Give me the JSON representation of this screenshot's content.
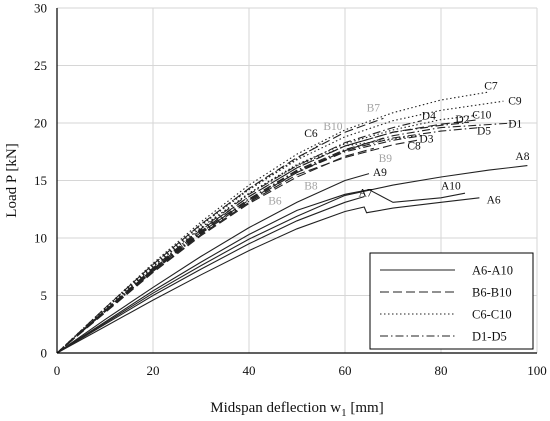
{
  "chart_data": {
    "type": "line",
    "title": "",
    "xlabel_main": "Midspan deflection w",
    "xlabel_sub": "1",
    "xlabel_unit": " [mm]",
    "ylabel": "Load P [kN]",
    "xlim": [
      0,
      100
    ],
    "ylim": [
      0,
      30
    ],
    "xticks": [
      0,
      20,
      40,
      60,
      80,
      100
    ],
    "yticks": [
      0,
      5,
      10,
      15,
      20,
      25,
      30
    ],
    "grid": true,
    "legend_position": "bottom-right",
    "legend": [
      {
        "label": "A6-A10",
        "dash": "solid"
      },
      {
        "label": "B6-B10",
        "dash": "long-dash"
      },
      {
        "label": "C6-C10",
        "dash": "dotted"
      },
      {
        "label": "D1-D5",
        "dash": "dash-dot"
      }
    ],
    "series": [
      {
        "name": "A6",
        "group": "A",
        "x": [
          0,
          10,
          20,
          30,
          40,
          50,
          60,
          64,
          64.5,
          70,
          80,
          88
        ],
        "y": [
          0,
          2.3,
          4.6,
          6.8,
          8.9,
          10.8,
          12.3,
          12.7,
          12.2,
          12.6,
          13.1,
          13.5
        ]
      },
      {
        "name": "A7",
        "group": "A",
        "x": [
          0,
          10,
          20,
          30,
          40,
          50,
          60,
          64
        ],
        "y": [
          0,
          2.5,
          5.0,
          7.3,
          9.5,
          11.5,
          13.1,
          13.6
        ]
      },
      {
        "name": "A8",
        "group": "A",
        "x": [
          0,
          10,
          20,
          30,
          40,
          50,
          60,
          70,
          80,
          90,
          98
        ],
        "y": [
          0,
          2.6,
          5.2,
          7.6,
          9.9,
          11.9,
          13.7,
          14.6,
          15.3,
          15.9,
          16.3
        ]
      },
      {
        "name": "A9",
        "group": "A",
        "x": [
          0,
          10,
          20,
          30,
          40,
          50,
          60,
          65
        ],
        "y": [
          0,
          2.9,
          5.7,
          8.4,
          10.9,
          13.1,
          15.0,
          15.6
        ]
      },
      {
        "name": "A10",
        "group": "A",
        "x": [
          0,
          10,
          20,
          30,
          40,
          50,
          60,
          65,
          70,
          80,
          85
        ],
        "y": [
          0,
          2.7,
          5.4,
          7.9,
          10.3,
          12.4,
          13.8,
          14.2,
          13.1,
          13.5,
          13.9
        ]
      },
      {
        "name": "B6",
        "group": "B",
        "x": [
          0,
          10,
          20,
          30,
          40,
          50,
          60,
          70,
          75
        ],
        "y": [
          0,
          3.6,
          7.1,
          10.3,
          13.1,
          15.5,
          17.0,
          18.1,
          18.5
        ]
      },
      {
        "name": "B7",
        "group": "B",
        "x": [
          0,
          10,
          20,
          30,
          40,
          50,
          60,
          68
        ],
        "y": [
          0,
          3.9,
          7.7,
          11.2,
          14.3,
          17.0,
          19.2,
          20.4
        ]
      },
      {
        "name": "B8",
        "group": "B",
        "x": [
          0,
          10,
          20,
          30,
          40,
          50,
          60,
          66
        ],
        "y": [
          0,
          3.5,
          7.0,
          10.2,
          13.0,
          15.3,
          17.1,
          17.8
        ]
      },
      {
        "name": "B9",
        "group": "B",
        "x": [
          0,
          10,
          20,
          30,
          40,
          50,
          60,
          68
        ],
        "y": [
          0,
          3.6,
          7.2,
          10.5,
          13.3,
          15.7,
          17.6,
          18.7
        ]
      },
      {
        "name": "B10",
        "group": "B",
        "x": [
          0,
          10,
          20,
          30,
          40,
          50,
          60,
          70,
          80,
          88
        ],
        "y": [
          0,
          3.7,
          7.3,
          10.7,
          13.6,
          16.1,
          18.0,
          19.2,
          19.9,
          20.3
        ]
      },
      {
        "name": "C6",
        "group": "C",
        "x": [
          0,
          10,
          20,
          30,
          40,
          50,
          55
        ],
        "y": [
          0,
          3.9,
          7.7,
          11.2,
          14.3,
          16.9,
          18.2
        ]
      },
      {
        "name": "C7",
        "group": "C",
        "x": [
          0,
          10,
          20,
          30,
          40,
          50,
          60,
          70,
          80,
          90
        ],
        "y": [
          0,
          3.9,
          7.8,
          11.4,
          14.6,
          17.3,
          19.4,
          20.9,
          22.0,
          22.7
        ]
      },
      {
        "name": "C8",
        "group": "C",
        "x": [
          0,
          10,
          20,
          30,
          40,
          50,
          60,
          70,
          75
        ],
        "y": [
          0,
          3.8,
          7.5,
          10.9,
          13.9,
          16.3,
          18.0,
          18.6,
          18.9
        ]
      },
      {
        "name": "C9",
        "group": "C",
        "x": [
          0,
          10,
          20,
          30,
          40,
          50,
          60,
          70,
          80,
          93
        ],
        "y": [
          0,
          3.8,
          7.6,
          11.1,
          14.2,
          16.8,
          18.8,
          20.2,
          21.1,
          21.9
        ]
      },
      {
        "name": "C10",
        "group": "C",
        "x": [
          0,
          10,
          20,
          30,
          40,
          50,
          60,
          70,
          80,
          88
        ],
        "y": [
          0,
          3.8,
          7.5,
          10.9,
          13.9,
          16.4,
          18.2,
          19.4,
          20.3,
          20.7
        ]
      },
      {
        "name": "D1",
        "group": "D",
        "x": [
          0,
          10,
          20,
          30,
          40,
          50,
          60,
          70,
          80,
          95
        ],
        "y": [
          0,
          3.6,
          7.2,
          10.5,
          13.4,
          15.9,
          17.7,
          18.9,
          19.6,
          20.0
        ]
      },
      {
        "name": "D2",
        "group": "D",
        "x": [
          0,
          10,
          20,
          30,
          40,
          50,
          60,
          70,
          80,
          85
        ],
        "y": [
          0,
          3.7,
          7.3,
          10.6,
          13.6,
          16.1,
          18.0,
          19.2,
          19.8,
          20.0
        ]
      },
      {
        "name": "D3",
        "group": "D",
        "x": [
          0,
          10,
          20,
          30,
          40,
          50,
          60,
          70,
          76
        ],
        "y": [
          0,
          3.6,
          7.1,
          10.4,
          13.2,
          15.7,
          17.5,
          18.5,
          18.9
        ]
      },
      {
        "name": "D4",
        "group": "D",
        "x": [
          0,
          10,
          20,
          30,
          40,
          50,
          60,
          70,
          76
        ],
        "y": [
          0,
          3.7,
          7.4,
          10.8,
          13.8,
          16.3,
          18.3,
          19.6,
          20.2
        ]
      },
      {
        "name": "D5",
        "group": "D",
        "x": [
          0,
          10,
          20,
          30,
          40,
          50,
          60,
          70,
          80,
          88
        ],
        "y": [
          0,
          3.6,
          7.2,
          10.5,
          13.4,
          15.8,
          17.6,
          18.7,
          19.3,
          19.6
        ]
      }
    ],
    "annotations": [
      {
        "text": "A6",
        "x": 89.5,
        "y": 13.0,
        "color": "#111111"
      },
      {
        "text": "A7",
        "x": 62.8,
        "y": 13.6,
        "color": "#111111"
      },
      {
        "text": "A8",
        "x": 95.5,
        "y": 16.8,
        "color": "#111111"
      },
      {
        "text": "A9",
        "x": 65.8,
        "y": 15.4,
        "color": "#111111"
      },
      {
        "text": "A10",
        "x": 80.0,
        "y": 14.2,
        "color": "#111111"
      },
      {
        "text": "B6",
        "x": 44.0,
        "y": 12.9,
        "color": "#a3a3a3"
      },
      {
        "text": "B7",
        "x": 64.5,
        "y": 21.0,
        "color": "#a3a3a3"
      },
      {
        "text": "B8",
        "x": 51.5,
        "y": 14.2,
        "color": "#a3a3a3"
      },
      {
        "text": "B9",
        "x": 67.0,
        "y": 16.6,
        "color": "#a3a3a3"
      },
      {
        "text": "B10",
        "x": 55.5,
        "y": 19.4,
        "color": "#a3a3a3"
      },
      {
        "text": "C6",
        "x": 51.5,
        "y": 18.8,
        "color": "#111111"
      },
      {
        "text": "C7",
        "x": 89.0,
        "y": 22.9,
        "color": "#111111"
      },
      {
        "text": "C8",
        "x": 73.0,
        "y": 17.7,
        "color": "#111111"
      },
      {
        "text": "C9",
        "x": 94.0,
        "y": 21.6,
        "color": "#111111"
      },
      {
        "text": "C10",
        "x": 86.5,
        "y": 20.4,
        "color": "#111111"
      },
      {
        "text": "D1",
        "x": 94.0,
        "y": 19.6,
        "color": "#111111"
      },
      {
        "text": "D2",
        "x": 83.0,
        "y": 20.0,
        "color": "#111111"
      },
      {
        "text": "D3",
        "x": 75.5,
        "y": 18.3,
        "color": "#111111"
      },
      {
        "text": "D4",
        "x": 76.0,
        "y": 20.3,
        "color": "#111111"
      },
      {
        "text": "D5",
        "x": 87.5,
        "y": 19.0,
        "color": "#111111"
      }
    ],
    "colors": {
      "series_line": "#222222",
      "label_dark": "#111111",
      "label_gray": "#a3a3a3",
      "grid": "#d6d6d6"
    }
  }
}
